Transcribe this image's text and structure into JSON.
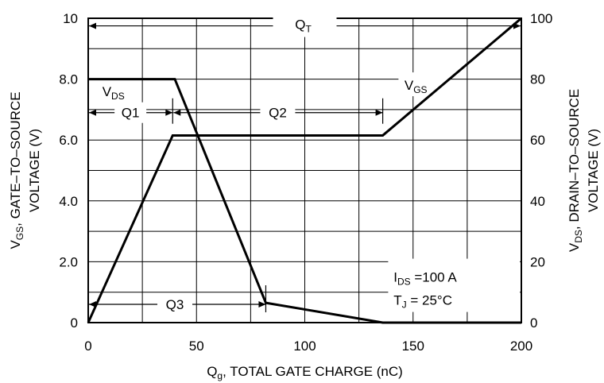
{
  "chart_data": {
    "type": "line",
    "xlabel": {
      "main": "Q",
      "sub": "g",
      "rest": ", TOTAL GATE CHARGE (nC)"
    },
    "ylabel_left": {
      "main": "V",
      "sub": "GS",
      "line1_rest": ", GATE–TO–SOURCE",
      "line2": "VOLTAGE (V)"
    },
    "ylabel_right": {
      "main": "V",
      "sub": "DS",
      "line1_rest": ", DRAIN–TO–SOURCE",
      "line2": "VOLTAGE (V)"
    },
    "xlim": [
      0,
      200
    ],
    "ylim_left": [
      0,
      10
    ],
    "ylim_right": [
      0,
      100
    ],
    "x_ticks": [
      0,
      50,
      100,
      150,
      200
    ],
    "x_tick_labels": [
      "0",
      "50",
      "100",
      "150",
      "200"
    ],
    "y_left_ticks": [
      0,
      2,
      4,
      6,
      8,
      10
    ],
    "y_left_tick_labels": [
      "0",
      "2.0",
      "4.0",
      "6.0",
      "8.0",
      "10"
    ],
    "y_right_ticks": [
      0,
      20,
      40,
      60,
      80,
      100
    ],
    "y_right_tick_labels": [
      "0",
      "20",
      "40",
      "60",
      "80",
      "100"
    ],
    "grid": true,
    "grid_x_step": 25,
    "grid_y_step": 1,
    "series": [
      {
        "name": "VGS",
        "axis": "left",
        "x": [
          0,
          39,
          136,
          200
        ],
        "y": [
          0,
          6.15,
          6.15,
          10
        ]
      },
      {
        "name": "VDS",
        "axis": "right",
        "x": [
          0,
          40,
          82,
          136,
          200
        ],
        "y": [
          80,
          80,
          6.5,
          0,
          0
        ]
      }
    ],
    "series_labels": [
      {
        "main": "V",
        "sub": "GS"
      },
      {
        "main": "V",
        "sub": "DS"
      }
    ],
    "annotations": {
      "QT": {
        "main": "Q",
        "sub": "T",
        "x_start": 0,
        "x_end": 200,
        "y": 9.75
      },
      "Q1": {
        "text": "Q1",
        "x_start": 0,
        "x_end": 39,
        "y": 6.9
      },
      "Q2": {
        "text": "Q2",
        "x_start": 39,
        "x_end": 136,
        "y": 6.9
      },
      "Q3": {
        "text": "Q3",
        "x_start": 0,
        "x_end": 82,
        "y": 0.6
      },
      "conditions": [
        {
          "main": "I",
          "sub": "DS",
          "rest": " =100 A"
        },
        {
          "main": "T",
          "sub": "J",
          "rest": " = 25°C"
        }
      ]
    },
    "color": "#000000"
  }
}
